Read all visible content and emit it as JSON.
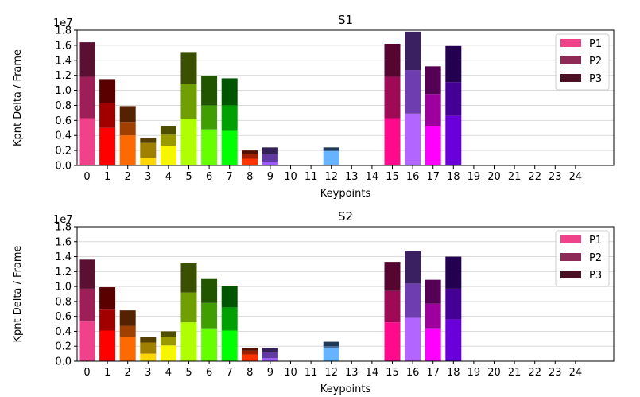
{
  "chart_data": [
    {
      "type": "bar",
      "stacked": true,
      "title": "S1",
      "xlabel": "Keypoints",
      "ylabel": "Kpnt Delta / Frame",
      "y_offset_label": "1e7",
      "ylim": [
        0,
        18000000
      ],
      "yticks": [
        "0.0",
        "0.2",
        "0.4",
        "0.6",
        "0.8",
        "1.0",
        "1.2",
        "1.4",
        "1.6",
        "1.8"
      ],
      "grid": "horizontal",
      "legend_position": "top-right",
      "categories": [
        "0",
        "1",
        "2",
        "3",
        "4",
        "5",
        "6",
        "7",
        "8",
        "9",
        "10",
        "11",
        "12",
        "13",
        "14",
        "15",
        "16",
        "17",
        "18",
        "19",
        "20",
        "21",
        "22",
        "23",
        "24"
      ],
      "series": [
        {
          "name": "P1",
          "values": [
            6300000,
            5000000,
            4000000,
            1000000,
            2600000,
            6200000,
            4800000,
            4600000,
            900000,
            500000,
            0,
            0,
            1900000,
            0,
            0,
            6300000,
            6900000,
            5200000,
            6600000,
            0,
            0,
            0,
            0,
            0,
            0
          ]
        },
        {
          "name": "P2",
          "values": [
            5500000,
            3300000,
            1800000,
            2000000,
            1500000,
            4600000,
            3200000,
            3400000,
            600000,
            1000000,
            0,
            0,
            200000,
            0,
            0,
            5500000,
            5800000,
            4300000,
            4500000,
            0,
            0,
            0,
            0,
            0,
            0
          ]
        },
        {
          "name": "P3",
          "values": [
            4600000,
            3200000,
            2100000,
            700000,
            1100000,
            4300000,
            3900000,
            3600000,
            500000,
            900000,
            0,
            0,
            300000,
            0,
            0,
            4400000,
            5100000,
            3700000,
            4800000,
            0,
            0,
            0,
            0,
            0,
            0
          ]
        }
      ]
    },
    {
      "type": "bar",
      "stacked": true,
      "title": "S2",
      "xlabel": "Keypoints",
      "ylabel": "Kpnt Delta / Frame",
      "y_offset_label": "1e7",
      "ylim": [
        0,
        18000000
      ],
      "yticks": [
        "0.0",
        "0.2",
        "0.4",
        "0.6",
        "0.8",
        "1.0",
        "1.2",
        "1.4",
        "1.6",
        "1.8"
      ],
      "grid": "horizontal",
      "legend_position": "top-right",
      "categories": [
        "0",
        "1",
        "2",
        "3",
        "4",
        "5",
        "6",
        "7",
        "8",
        "9",
        "10",
        "11",
        "12",
        "13",
        "14",
        "15",
        "16",
        "17",
        "18",
        "19",
        "20",
        "21",
        "22",
        "23",
        "24"
      ],
      "series": [
        {
          "name": "P1",
          "values": [
            5300000,
            4100000,
            3200000,
            1000000,
            2100000,
            5200000,
            4400000,
            4100000,
            900000,
            400000,
            0,
            0,
            1700000,
            0,
            0,
            5200000,
            5800000,
            4400000,
            5600000,
            0,
            0,
            0,
            0,
            0,
            0
          ]
        },
        {
          "name": "P2",
          "values": [
            4400000,
            2800000,
            1500000,
            1500000,
            1100000,
            4000000,
            3400000,
            3100000,
            500000,
            800000,
            0,
            0,
            300000,
            0,
            0,
            4200000,
            4600000,
            3300000,
            4100000,
            0,
            0,
            0,
            0,
            0,
            0
          ]
        },
        {
          "name": "P3",
          "values": [
            3900000,
            3000000,
            2100000,
            700000,
            800000,
            3900000,
            3200000,
            2900000,
            400000,
            600000,
            0,
            0,
            600000,
            0,
            0,
            3900000,
            4400000,
            3200000,
            4300000,
            0,
            0,
            0,
            0,
            0,
            0
          ]
        }
      ]
    }
  ],
  "bar_colors": {
    "P1": [
      "#f0428a",
      "#ff0000",
      "#ff6a00",
      "#ffd700",
      "#f6f600",
      "#b0ff00",
      "#66ff00",
      "#00ff00",
      "#ff3300",
      "#9b59ff",
      "#777777",
      "#777777",
      "#66b3ff",
      "#777777",
      "#777777",
      "#ff0a8a",
      "#b266ff",
      "#ff00ff",
      "#6a00d9",
      "#777777",
      "#777777",
      "#777777",
      "#777777",
      "#777777",
      "#777777"
    ],
    "P2": [
      "#9e1e58",
      "#a00000",
      "#a04000",
      "#a08000",
      "#999900",
      "#6e9e00",
      "#409e00",
      "#00a000",
      "#a02000",
      "#603aa0",
      "#555555",
      "#555555",
      "#3e6e9e",
      "#555555",
      "#555555",
      "#9e0a55",
      "#6e3eb0",
      "#9e009e",
      "#440094",
      "#555555",
      "#555555",
      "#555555",
      "#555555",
      "#555555",
      "#555555"
    ],
    "P3": [
      "#5a1030",
      "#5a0000",
      "#552200",
      "#553f00",
      "#4f4f00",
      "#3a5000",
      "#225500",
      "#005500",
      "#551000",
      "#332055",
      "#333333",
      "#333333",
      "#203a55",
      "#333333",
      "#333333",
      "#550530",
      "#3a2060",
      "#550055",
      "#240050",
      "#333333",
      "#333333",
      "#333333",
      "#333333",
      "#333333",
      "#333333"
    ]
  },
  "legend_colors": {
    "P1": "#ee4289",
    "P2": "#8e2a55",
    "P3": "#4a1024"
  }
}
